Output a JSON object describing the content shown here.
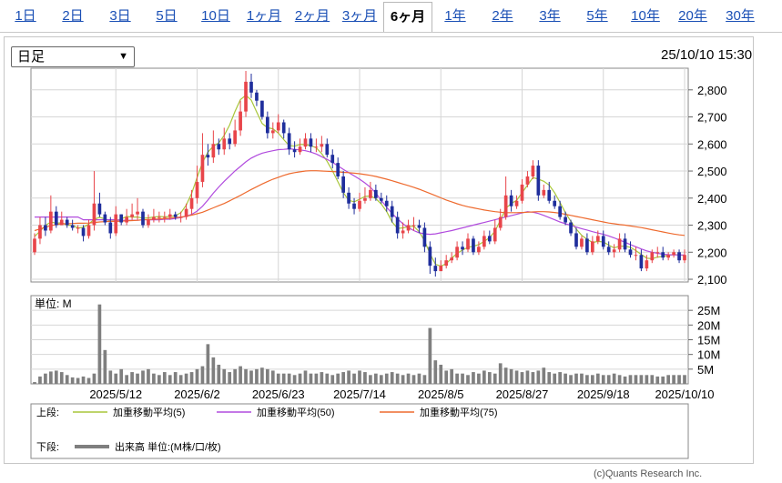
{
  "tabs": [
    "1日",
    "2日",
    "3日",
    "5日",
    "10日",
    "1ヶ月",
    "2ヶ月",
    "3ヶ月",
    "6ヶ月",
    "1年",
    "2年",
    "3年",
    "5年",
    "10年",
    "20年",
    "30年"
  ],
  "active_tab": "6ヶ月",
  "period_select": "日足",
  "datetime": "25/10/10 15:30",
  "credit": "(c)Quants Research Inc.",
  "chart_data": {
    "type": "candlestick",
    "price_axis": {
      "ticks": [
        2100,
        2200,
        2300,
        2400,
        2500,
        2600,
        2700,
        2800
      ],
      "tick_labels": [
        "2,100",
        "2,200",
        "2,300",
        "2,400",
        "2,500",
        "2,600",
        "2,700",
        "2,800"
      ],
      "range": [
        2090,
        2880
      ]
    },
    "volume_axis": {
      "unit_label": "単位: M",
      "ticks": [
        5,
        10,
        15,
        20,
        25
      ],
      "tick_labels": [
        "5M",
        "10M",
        "15M",
        "20M",
        "25M"
      ],
      "range": [
        0,
        30
      ]
    },
    "x_tick_labels": [
      "2025/5/12",
      "2025/6/2",
      "2025/6/23",
      "2025/7/14",
      "2025/8/5",
      "2025/8/27",
      "2025/9/18",
      "2025/10/10"
    ],
    "x_tick_index": [
      15,
      30,
      45,
      60,
      75,
      90,
      105,
      120
    ],
    "colors": {
      "up": "#e8454a",
      "down": "#1f2e9c",
      "ma5": "#a8c63a",
      "ma50": "#b14bde",
      "ma75": "#ee6a2e",
      "volume": "#7f7f7f"
    },
    "candles": {
      "open": [
        2200,
        2250,
        2300,
        2280,
        2350,
        2300,
        2320,
        2300,
        2290,
        2290,
        2260,
        2300,
        2380,
        2340,
        2310,
        2270,
        2340,
        2310,
        2330,
        2340,
        2350,
        2300,
        2320,
        2330,
        2330,
        2330,
        2340,
        2330,
        2330,
        2360,
        2400,
        2460,
        2560,
        2550,
        2600,
        2580,
        2620,
        2600,
        2650,
        2720,
        2830,
        2790,
        2760,
        2700,
        2640,
        2650,
        2680,
        2640,
        2580,
        2570,
        2590,
        2620,
        2590,
        2590,
        2600,
        2560,
        2530,
        2480,
        2420,
        2380,
        2360,
        2390,
        2400,
        2430,
        2400,
        2390,
        2370,
        2330,
        2270,
        2280,
        2300,
        2300,
        2290,
        2220,
        2150,
        2130,
        2150,
        2170,
        2180,
        2220,
        2210,
        2250,
        2200,
        2220,
        2260,
        2240,
        2290,
        2330,
        2410,
        2370,
        2390,
        2450,
        2480,
        2520,
        2410,
        2430,
        2390,
        2370,
        2330,
        2310,
        2270,
        2220,
        2250,
        2200,
        2240,
        2260,
        2220,
        2200,
        2210,
        2250,
        2210,
        2190,
        2190,
        2140,
        2170,
        2200,
        2200,
        2180,
        2190,
        2200,
        2170
      ],
      "close": [
        2250,
        2300,
        2280,
        2350,
        2300,
        2320,
        2300,
        2290,
        2290,
        2260,
        2300,
        2380,
        2340,
        2310,
        2270,
        2340,
        2310,
        2330,
        2340,
        2350,
        2300,
        2320,
        2330,
        2330,
        2330,
        2340,
        2330,
        2330,
        2360,
        2400,
        2460,
        2560,
        2550,
        2600,
        2580,
        2620,
        2600,
        2650,
        2720,
        2830,
        2790,
        2760,
        2700,
        2640,
        2650,
        2680,
        2640,
        2580,
        2570,
        2590,
        2620,
        2590,
        2590,
        2600,
        2560,
        2530,
        2480,
        2420,
        2380,
        2360,
        2390,
        2400,
        2430,
        2400,
        2390,
        2370,
        2330,
        2270,
        2280,
        2300,
        2300,
        2290,
        2220,
        2150,
        2130,
        2150,
        2170,
        2180,
        2220,
        2210,
        2250,
        2200,
        2220,
        2260,
        2240,
        2290,
        2330,
        2410,
        2370,
        2390,
        2450,
        2480,
        2520,
        2410,
        2430,
        2390,
        2370,
        2330,
        2310,
        2270,
        2220,
        2250,
        2200,
        2240,
        2260,
        2220,
        2200,
        2210,
        2250,
        2210,
        2190,
        2190,
        2140,
        2170,
        2200,
        2200,
        2180,
        2190,
        2200,
        2170,
        2190
      ],
      "high": [
        2270,
        2330,
        2330,
        2410,
        2370,
        2350,
        2330,
        2320,
        2300,
        2300,
        2320,
        2500,
        2420,
        2350,
        2330,
        2370,
        2340,
        2360,
        2380,
        2400,
        2360,
        2340,
        2360,
        2350,
        2350,
        2360,
        2350,
        2350,
        2380,
        2430,
        2520,
        2640,
        2600,
        2650,
        2620,
        2660,
        2640,
        2690,
        2760,
        2870,
        2860,
        2800,
        2760,
        2720,
        2680,
        2710,
        2690,
        2660,
        2610,
        2620,
        2640,
        2640,
        2620,
        2630,
        2620,
        2580,
        2550,
        2500,
        2440,
        2400,
        2420,
        2440,
        2460,
        2450,
        2420,
        2410,
        2390,
        2350,
        2310,
        2320,
        2330,
        2320,
        2310,
        2240,
        2180,
        2170,
        2190,
        2200,
        2240,
        2240,
        2270,
        2260,
        2240,
        2280,
        2280,
        2320,
        2360,
        2480,
        2430,
        2410,
        2470,
        2500,
        2540,
        2540,
        2450,
        2460,
        2410,
        2390,
        2350,
        2320,
        2290,
        2260,
        2270,
        2260,
        2280,
        2280,
        2240,
        2230,
        2270,
        2270,
        2240,
        2220,
        2210,
        2190,
        2210,
        2220,
        2220,
        2200,
        2210,
        2210,
        2210
      ],
      "low": [
        2190,
        2230,
        2260,
        2270,
        2290,
        2300,
        2290,
        2280,
        2270,
        2240,
        2250,
        2280,
        2330,
        2300,
        2250,
        2260,
        2300,
        2300,
        2320,
        2320,
        2290,
        2290,
        2310,
        2310,
        2310,
        2320,
        2320,
        2310,
        2320,
        2340,
        2380,
        2440,
        2520,
        2530,
        2560,
        2560,
        2580,
        2590,
        2630,
        2700,
        2770,
        2740,
        2690,
        2620,
        2620,
        2640,
        2620,
        2560,
        2550,
        2560,
        2580,
        2570,
        2570,
        2570,
        2550,
        2510,
        2470,
        2400,
        2360,
        2340,
        2350,
        2380,
        2390,
        2390,
        2380,
        2350,
        2310,
        2250,
        2250,
        2270,
        2280,
        2270,
        2200,
        2120,
        2110,
        2130,
        2140,
        2160,
        2170,
        2190,
        2200,
        2190,
        2190,
        2210,
        2230,
        2230,
        2280,
        2320,
        2350,
        2360,
        2380,
        2440,
        2470,
        2390,
        2400,
        2380,
        2360,
        2320,
        2300,
        2260,
        2210,
        2210,
        2190,
        2190,
        2230,
        2210,
        2190,
        2180,
        2200,
        2200,
        2180,
        2170,
        2130,
        2130,
        2160,
        2180,
        2170,
        2170,
        2180,
        2160,
        2160
      ]
    },
    "ma_series": [
      {
        "name": "加重移動平均(5)",
        "key": "ma5",
        "values": [
          2258,
          2278,
          2299,
          2312,
          2307,
          2309,
          2300,
          2299,
          2290,
          2292,
          2304,
          2322,
          2329,
          2323,
          2315,
          2316,
          2323,
          2332,
          2330,
          2330,
          2326,
          2327,
          2330,
          2332,
          2331,
          2332,
          2335,
          2346,
          2374,
          2418,
          2476,
          2532,
          2570,
          2592,
          2604,
          2632,
          2670,
          2720,
          2764,
          2780,
          2762,
          2718,
          2676,
          2660,
          2656,
          2640,
          2616,
          2594,
          2592,
          2598,
          2598,
          2594,
          2586,
          2564,
          2536,
          2500,
          2460,
          2420,
          2392,
          2386,
          2396,
          2406,
          2408,
          2398,
          2378,
          2350,
          2312,
          2288,
          2290,
          2294,
          2296,
          2276,
          2242,
          2194,
          2156,
          2148,
          2158,
          2178,
          2196,
          2208,
          2218,
          2222,
          2228,
          2240,
          2254,
          2278,
          2318,
          2362,
          2380,
          2392,
          2420,
          2448,
          2476,
          2470,
          2462,
          2448,
          2420,
          2384,
          2346,
          2314,
          2286,
          2262,
          2248,
          2236,
          2240,
          2238,
          2226,
          2216,
          2222,
          2222,
          2218,
          2206,
          2192,
          2178,
          2176,
          2182,
          2184,
          2188,
          2192,
          2190,
          2188
        ]
      },
      {
        "name": "加重移動平均(50)",
        "key": "ma50",
        "values": [
          2330,
          2330,
          2330,
          2330,
          2330,
          2330,
          2330,
          2330,
          2330,
          2320,
          2320,
          2320,
          2320,
          2320,
          2320,
          2320,
          2318,
          2318,
          2318,
          2318,
          2320,
          2320,
          2320,
          2320,
          2322,
          2322,
          2325,
          2328,
          2333,
          2340,
          2352,
          2370,
          2393,
          2418,
          2441,
          2462,
          2481,
          2500,
          2517,
          2534,
          2548,
          2558,
          2566,
          2571,
          2575,
          2579,
          2580,
          2582,
          2580,
          2578,
          2575,
          2570,
          2563,
          2553,
          2543,
          2532,
          2519,
          2506,
          2494,
          2482,
          2470,
          2456,
          2440,
          2418,
          2392,
          2366,
          2343,
          2323,
          2305,
          2291,
          2280,
          2272,
          2268,
          2266,
          2268,
          2272,
          2276,
          2280,
          2285,
          2290,
          2295,
          2300,
          2305,
          2310,
          2315,
          2320,
          2325,
          2330,
          2335,
          2340,
          2345,
          2350,
          2348,
          2343,
          2336,
          2328,
          2320,
          2312,
          2305,
          2299,
          2293,
          2287,
          2282,
          2276,
          2271,
          2266,
          2260,
          2253,
          2245,
          2237,
          2228,
          2220,
          2212,
          2205,
          2200,
          2196,
          2193,
          2191,
          2190,
          2190,
          2190
        ]
      },
      {
        "name": "加重移動平均(75)",
        "key": "ma75",
        "values": [
          2280,
          2286,
          2292,
          2298,
          2302,
          2305,
          2305,
          2306,
          2307,
          2307,
          2308,
          2310,
          2312,
          2313,
          2314,
          2314,
          2315,
          2316,
          2317,
          2318,
          2320,
          2321,
          2322,
          2323,
          2324,
          2326,
          2328,
          2330,
          2333,
          2337,
          2342,
          2348,
          2356,
          2364,
          2372,
          2380,
          2390,
          2400,
          2410,
          2421,
          2432,
          2442,
          2452,
          2461,
          2470,
          2477,
          2484,
          2490,
          2494,
          2497,
          2500,
          2501,
          2501,
          2500,
          2499,
          2498,
          2497,
          2495,
          2494,
          2492,
          2490,
          2487,
          2484,
          2480,
          2475,
          2470,
          2464,
          2458,
          2452,
          2446,
          2440,
          2433,
          2425,
          2417,
          2409,
          2401,
          2393,
          2386,
          2379,
          2373,
          2368,
          2364,
          2360,
          2356,
          2353,
          2350,
          2348,
          2346,
          2346,
          2346,
          2347,
          2348,
          2349,
          2350,
          2350,
          2349,
          2347,
          2344,
          2340,
          2336,
          2332,
          2328,
          2324,
          2320,
          2316,
          2312,
          2308,
          2305,
          2302,
          2300,
          2297,
          2294,
          2291,
          2287,
          2283,
          2279,
          2275,
          2271,
          2267,
          2264,
          2262
        ]
      }
    ],
    "volume": [
      0.6,
      2.5,
      3.5,
      4.2,
      4.5,
      4.0,
      3.0,
      2.2,
      2.0,
      2.5,
      2.0,
      3.5,
      27,
      11.5,
      4.5,
      3.5,
      5.0,
      3.0,
      4.0,
      3.5,
      4.5,
      5.0,
      3.5,
      3.0,
      4.0,
      3.0,
      4.0,
      3.0,
      3.5,
      4.0,
      5.0,
      6.0,
      13.5,
      9.0,
      6.5,
      5.0,
      4.0,
      5.0,
      6.0,
      5.0,
      4.5,
      5.0,
      5.5,
      5.0,
      4.5,
      3.5,
      3.5,
      3.5,
      3.0,
      3.5,
      4.5,
      3.5,
      3.5,
      4.0,
      3.5,
      3.0,
      3.5,
      4.0,
      4.5,
      3.5,
      4.5,
      4.0,
      3.0,
      3.5,
      3.0,
      3.5,
      4.0,
      3.5,
      3.0,
      3.5,
      3.0,
      3.5,
      3.0,
      19,
      8.0,
      6.5,
      4.5,
      5.0,
      3.5,
      3.5,
      3.0,
      4.0,
      3.5,
      4.5,
      4.0,
      3.5,
      7.0,
      5.5,
      5.0,
      4.5,
      4.0,
      4.5,
      4.0,
      4.5,
      5.5,
      4.0,
      3.5,
      4.0,
      3.5,
      3.0,
      3.5,
      3.5,
      3.0,
      3.0,
      3.5,
      3.0,
      3.0,
      3.5,
      3.0,
      2.5,
      3.0,
      3.0,
      3.0,
      3.0,
      3.0,
      2.5,
      2.5,
      3.0,
      3.0,
      3.0,
      3.0
    ],
    "legend": {
      "upper_label": "上段:",
      "lower_label": "下段:",
      "upper_items": [
        {
          "key": "ma5",
          "label": "加重移動平均(5)"
        },
        {
          "key": "ma50",
          "label": "加重移動平均(50)"
        },
        {
          "key": "ma75",
          "label": "加重移動平均(75)"
        }
      ],
      "lower_item": {
        "label": "出来高 単位:(M株/口/枚)"
      }
    }
  }
}
